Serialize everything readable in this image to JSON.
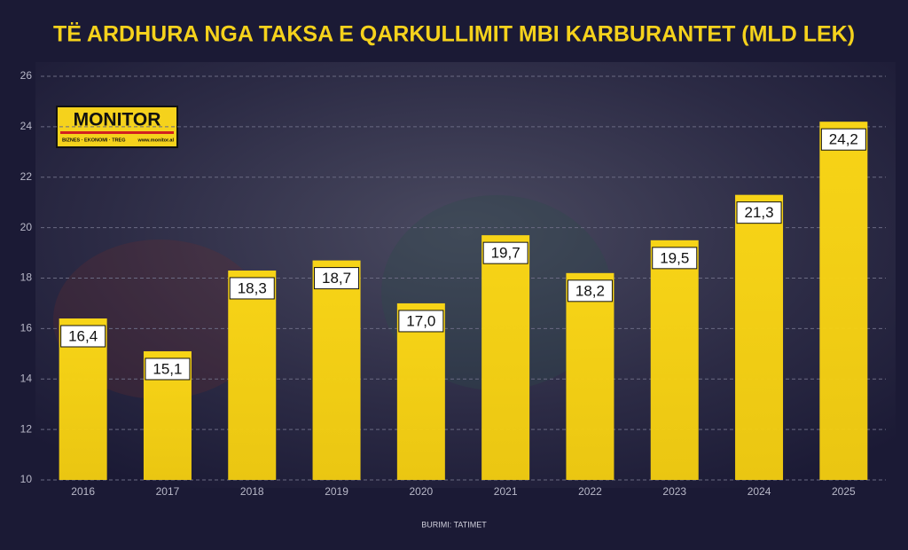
{
  "chart_data": {
    "type": "bar",
    "title": "TË ARDHURA NGA TAKSA E QARKULLIMIT MBI KARBURANTET (MLD LEK)",
    "categories": [
      "2016",
      "2017",
      "2018",
      "2019",
      "2020",
      "2021",
      "2022",
      "2023",
      "2024",
      "2025"
    ],
    "values": [
      16.4,
      15.1,
      18.3,
      18.7,
      17.0,
      19.7,
      18.2,
      19.5,
      21.3,
      24.2
    ],
    "value_labels": [
      "16,4",
      "15,1",
      "18,3",
      "18,7",
      "17,0",
      "19,7",
      "18,2",
      "19,5",
      "21,3",
      "24,2"
    ],
    "color": "#f5d21c",
    "ylim": [
      10,
      26
    ],
    "yticks": [
      10,
      12,
      14,
      16,
      18,
      20,
      22,
      24,
      26
    ],
    "grid": true,
    "source": "BURIMI: TATIMET"
  },
  "logo": {
    "name": "MONITOR",
    "tagline": "BIZNES · EKONOMI · TREG",
    "url": "www.monitor.al"
  }
}
